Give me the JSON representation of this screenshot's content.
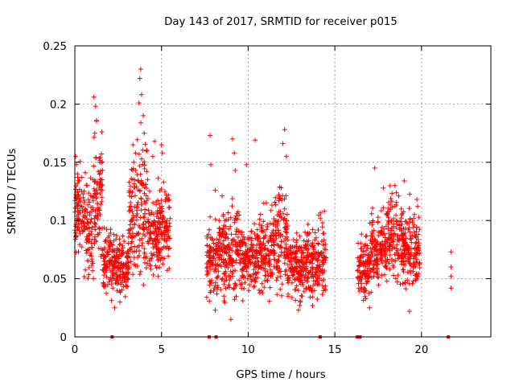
{
  "chart_data": {
    "type": "scatter",
    "title": "Day 143 of 2017, SRMTID for receiver p015",
    "xlabel": "GPS time / hours",
    "ylabel": "SRMTID / TECUs",
    "xlim": [
      0,
      24
    ],
    "ylim": [
      0,
      0.25
    ],
    "x_ticks": [
      0,
      5,
      10,
      15,
      20
    ],
    "x_tick_labels": [
      "0",
      "5",
      "10",
      "15",
      "20"
    ],
    "y_ticks": [
      0,
      0.05,
      0.1,
      0.15,
      0.2,
      0.25
    ],
    "y_tick_labels": [
      "0",
      "0.05",
      "0.1",
      "0.15",
      "0.2",
      "0.25"
    ],
    "grid": true,
    "marker": "+",
    "series": [
      {
        "name": "SRMTID",
        "color": "#ff0000",
        "clusters": [
          {
            "x_start": 0.0,
            "x_end": 0.5,
            "center": 0.105,
            "spread": 0.02
          },
          {
            "x_start": 0.5,
            "x_end": 1.0,
            "center": 0.09,
            "spread": 0.025
          },
          {
            "x_start": 1.0,
            "x_end": 1.6,
            "center": 0.12,
            "spread": 0.035
          },
          {
            "x_start": 1.6,
            "x_end": 2.4,
            "center": 0.065,
            "spread": 0.018
          },
          {
            "x_start": 2.4,
            "x_end": 3.1,
            "center": 0.06,
            "spread": 0.015
          },
          {
            "x_start": 3.1,
            "x_end": 3.6,
            "center": 0.105,
            "spread": 0.03
          },
          {
            "x_start": 3.6,
            "x_end": 4.2,
            "center": 0.11,
            "spread": 0.045
          },
          {
            "x_start": 4.2,
            "x_end": 4.8,
            "center": 0.09,
            "spread": 0.025
          },
          {
            "x_start": 4.8,
            "x_end": 5.5,
            "center": 0.095,
            "spread": 0.025
          },
          {
            "x_start": 7.6,
            "x_end": 8.3,
            "center": 0.065,
            "spread": 0.018
          },
          {
            "x_start": 8.3,
            "x_end": 9.5,
            "center": 0.075,
            "spread": 0.025
          },
          {
            "x_start": 9.5,
            "x_end": 10.5,
            "center": 0.065,
            "spread": 0.018
          },
          {
            "x_start": 10.5,
            "x_end": 11.3,
            "center": 0.07,
            "spread": 0.022
          },
          {
            "x_start": 11.3,
            "x_end": 12.3,
            "center": 0.085,
            "spread": 0.03
          },
          {
            "x_start": 12.3,
            "x_end": 13.3,
            "center": 0.06,
            "spread": 0.018
          },
          {
            "x_start": 13.3,
            "x_end": 14.5,
            "center": 0.065,
            "spread": 0.02
          },
          {
            "x_start": 16.3,
            "x_end": 17.0,
            "center": 0.06,
            "spread": 0.018
          },
          {
            "x_start": 17.0,
            "x_end": 18.0,
            "center": 0.075,
            "spread": 0.022
          },
          {
            "x_start": 18.0,
            "x_end": 19.0,
            "center": 0.085,
            "spread": 0.025
          },
          {
            "x_start": 19.0,
            "x_end": 19.9,
            "center": 0.075,
            "spread": 0.022
          }
        ],
        "points": [
          [
            0.05,
            0.155
          ],
          [
            0.1,
            0.148
          ],
          [
            0.15,
            0.132
          ],
          [
            0.6,
            0.141
          ],
          [
            1.1,
            0.206
          ],
          [
            1.2,
            0.198
          ],
          [
            1.25,
            0.186
          ],
          [
            1.15,
            0.175
          ],
          [
            1.35,
            0.142
          ],
          [
            1.4,
            0.128
          ],
          [
            3.35,
            0.165
          ],
          [
            3.5,
            0.158
          ],
          [
            3.7,
            0.201
          ],
          [
            3.75,
            0.222
          ],
          [
            3.8,
            0.23
          ],
          [
            3.85,
            0.208
          ],
          [
            4.6,
            0.168
          ],
          [
            4.5,
            0.155
          ],
          [
            5.0,
            0.165
          ],
          [
            5.05,
            0.158
          ],
          [
            7.8,
            0.173
          ],
          [
            7.85,
            0.148
          ],
          [
            8.1,
            0.126
          ],
          [
            9.1,
            0.17
          ],
          [
            9.2,
            0.158
          ],
          [
            9.25,
            0.143
          ],
          [
            9.9,
            0.148
          ],
          [
            10.4,
            0.169
          ],
          [
            12.1,
            0.178
          ],
          [
            12.0,
            0.166
          ],
          [
            12.2,
            0.155
          ],
          [
            9.0,
            0.015
          ],
          [
            8.1,
            0.023
          ],
          [
            12.9,
            0.023
          ],
          [
            13.0,
            0.031
          ],
          [
            4.8,
            0.052
          ],
          [
            17.3,
            0.145
          ],
          [
            17.8,
            0.128
          ],
          [
            19.0,
            0.134
          ],
          [
            19.3,
            0.022
          ],
          [
            17.0,
            0.025
          ],
          [
            2.3,
            0.025
          ],
          [
            2.6,
            0.03
          ],
          [
            21.7,
            0.073
          ],
          [
            21.7,
            0.06
          ],
          [
            21.7,
            0.052
          ],
          [
            21.7,
            0.042
          ],
          [
            0.15,
            0.14
          ],
          [
            0.25,
            0.118
          ],
          [
            1.05,
            0.135
          ],
          [
            4.0,
            0.175
          ],
          [
            3.95,
            0.19
          ],
          [
            4.15,
            0.142
          ],
          [
            14.3,
            0.098
          ],
          [
            14.4,
            0.108
          ]
        ],
        "zero_markers": [
          2.15,
          7.75,
          8.15,
          14.15,
          16.3,
          16.45,
          21.55
        ]
      }
    ]
  }
}
